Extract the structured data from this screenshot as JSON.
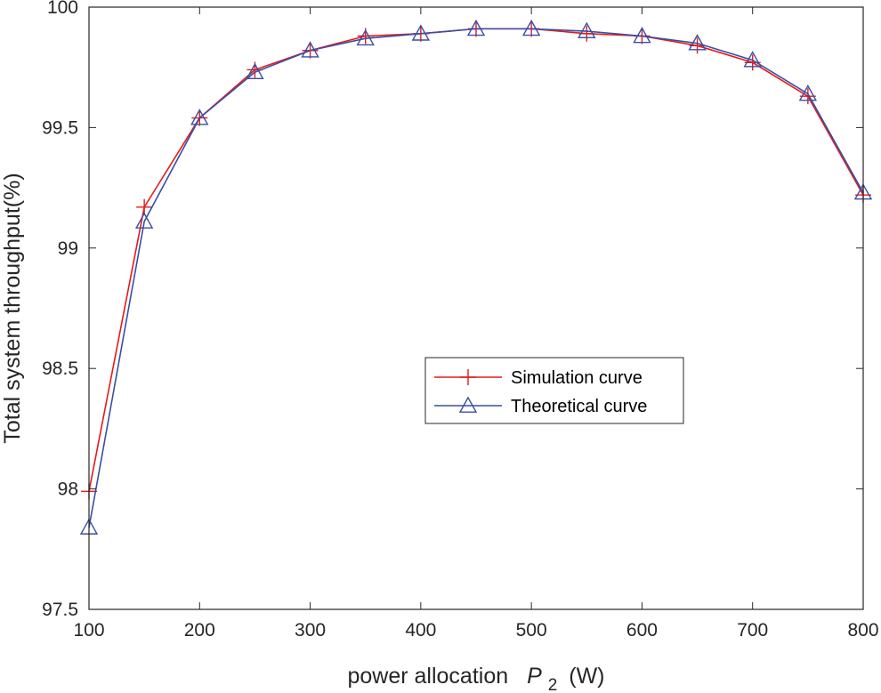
{
  "chart_data": {
    "type": "line",
    "title": "",
    "xlabel": {
      "prefix": "power allocation",
      "symbol": "P",
      "subscript": "2",
      "unit": "(W)"
    },
    "ylabel": "Total system throughput(%)",
    "xlim": [
      100,
      800
    ],
    "ylim": [
      97.5,
      100
    ],
    "xticks": [
      100,
      200,
      300,
      400,
      500,
      600,
      700,
      800
    ],
    "yticks": [
      97.5,
      98,
      98.5,
      99,
      99.5,
      100
    ],
    "xtick_labels": [
      "100",
      "200",
      "300",
      "400",
      "500",
      "600",
      "700",
      "800"
    ],
    "ytick_labels": [
      "97.5",
      "98",
      "98.5",
      "99",
      "99.5",
      "100"
    ],
    "grid": false,
    "legend_position": "center-right",
    "x": [
      100,
      150,
      200,
      250,
      300,
      350,
      400,
      450,
      500,
      550,
      600,
      650,
      700,
      750,
      800
    ],
    "series": [
      {
        "name": "Simulation curve",
        "color": "#e41a1c",
        "marker": "plus",
        "values": [
          97.99,
          99.17,
          99.54,
          99.74,
          99.82,
          99.88,
          99.89,
          99.91,
          99.91,
          99.89,
          99.88,
          99.84,
          99.77,
          99.63,
          99.22
        ]
      },
      {
        "name": "Theoretical curve",
        "color": "#3a4fa3",
        "marker": "triangle",
        "values": [
          97.84,
          99.11,
          99.54,
          99.73,
          99.82,
          99.87,
          99.89,
          99.91,
          99.91,
          99.9,
          99.88,
          99.85,
          99.78,
          99.64,
          99.23
        ]
      }
    ]
  }
}
